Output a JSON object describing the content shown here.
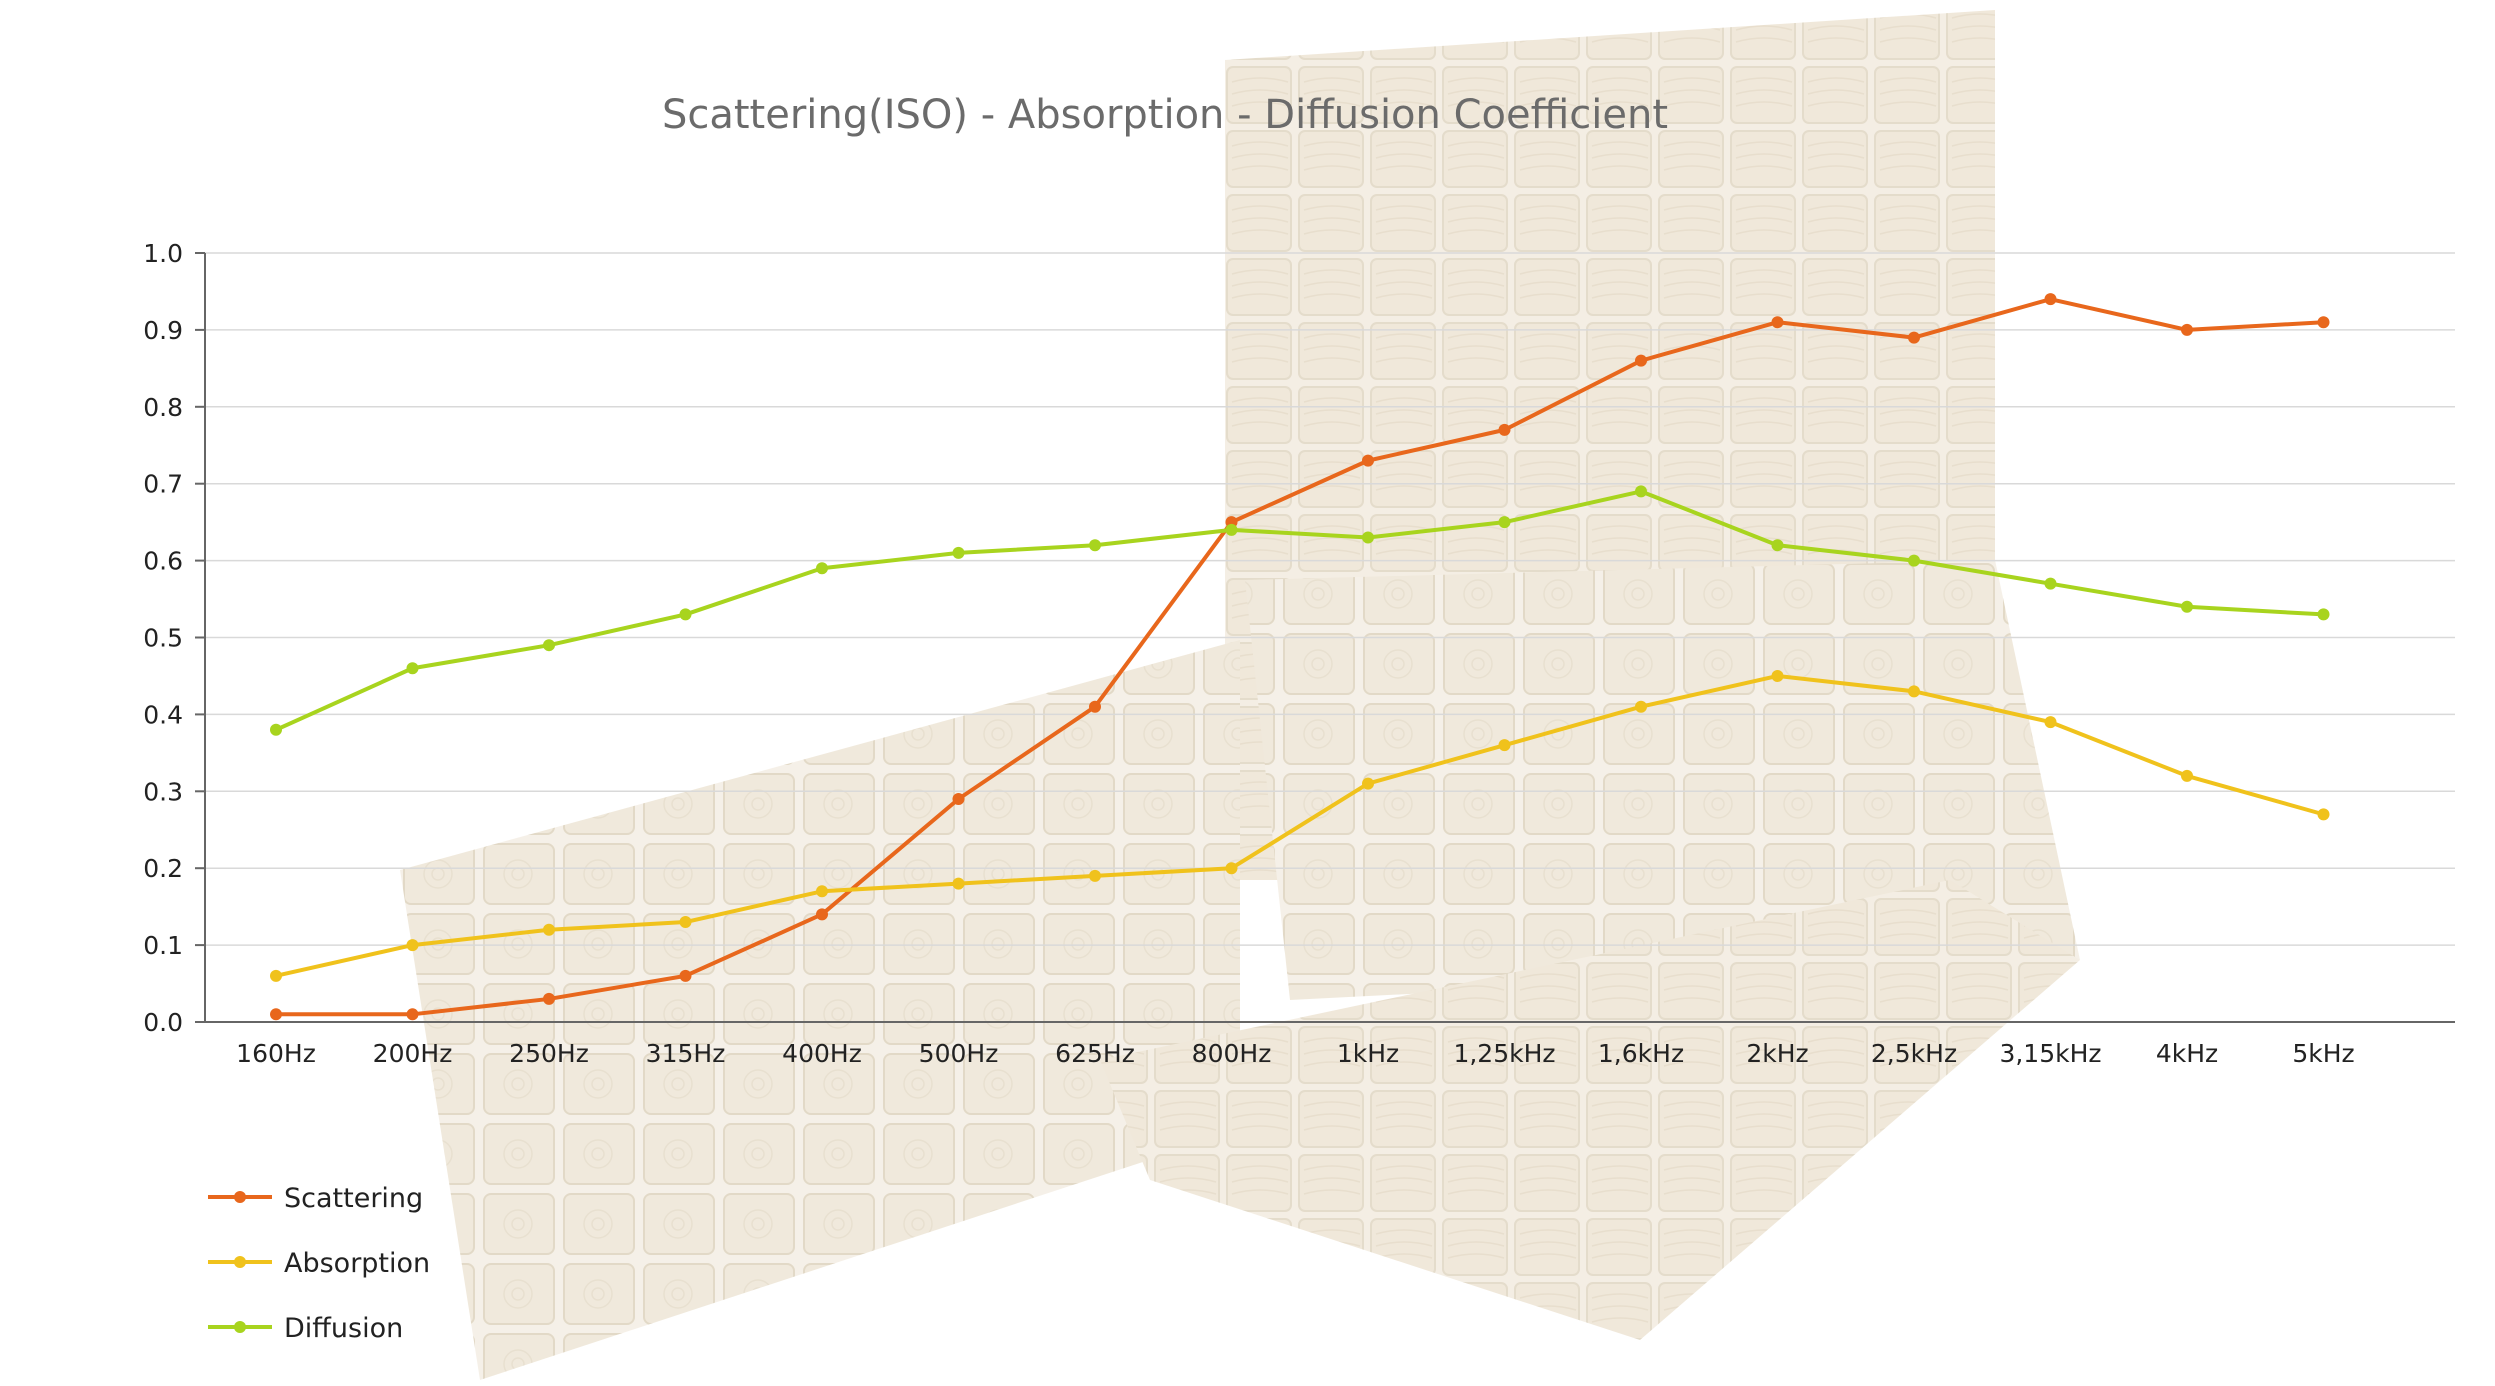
{
  "chart_data": {
    "type": "line",
    "title": "Scattering(ISO) - Absorption - Diffusion Coefficient",
    "xlabel": "",
    "ylabel": "",
    "categories": [
      "160Hz",
      "200Hz",
      "250Hz",
      "315Hz",
      "400Hz",
      "500Hz",
      "625Hz",
      "800Hz",
      "1kHz",
      "1,25kHz",
      "1,6kHz",
      "2kHz",
      "2,5kHz",
      "3,15kHz",
      "4kHz",
      "5kHz"
    ],
    "ylim": [
      0,
      1.0
    ],
    "yticks": [
      "0.0",
      "0.1",
      "0.2",
      "0.3",
      "0.4",
      "0.5",
      "0.6",
      "0.7",
      "0.8",
      "0.9",
      "1.0"
    ],
    "grid": true,
    "legend_position": "bottom-left",
    "series": [
      {
        "name": "Scattering",
        "color": "#e8671c",
        "values": [
          0.01,
          0.01,
          0.03,
          0.06,
          0.14,
          0.29,
          0.41,
          0.65,
          0.73,
          0.77,
          0.86,
          0.91,
          0.89,
          0.94,
          0.9,
          0.91
        ]
      },
      {
        "name": "Absorption",
        "color": "#f0c21c",
        "values": [
          0.06,
          0.1,
          0.12,
          0.13,
          0.17,
          0.18,
          0.19,
          0.2,
          0.31,
          0.36,
          0.41,
          0.45,
          0.43,
          0.39,
          0.32,
          0.27
        ]
      },
      {
        "name": "Diffusion",
        "color": "#a8d41e",
        "values": [
          0.38,
          0.46,
          0.49,
          0.53,
          0.59,
          0.61,
          0.62,
          0.64,
          0.63,
          0.65,
          0.69,
          0.62,
          0.6,
          0.57,
          0.54,
          0.53
        ]
      }
    ]
  },
  "background": {
    "image": "wooden-diffuser-blocks"
  }
}
